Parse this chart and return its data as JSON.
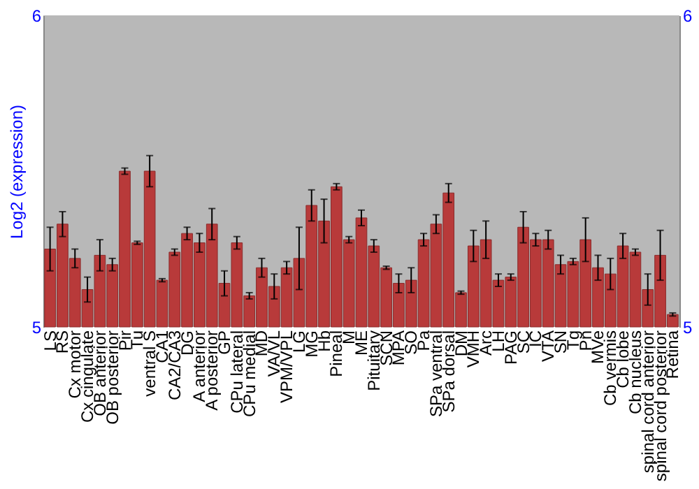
{
  "chart_data": {
    "type": "bar",
    "ylabel": "Log2 (expression)",
    "categories": [
      "LS",
      "RS",
      "Cx motor",
      "Cx cingulate",
      "OB anterior",
      "OB posterior",
      "Pir",
      "Tu",
      "ventral S",
      "CA1",
      "CA2/CA3",
      "DG",
      "A anterior",
      "A posterior",
      "GP",
      "CPu lateral",
      "CPu medial",
      "MD",
      "VA/VL",
      "VPM/VPL",
      "LG",
      "MG",
      "Hb",
      "Pineal",
      "M",
      "ME",
      "Pituitary",
      "SCN",
      "MPA",
      "SO",
      "Pa",
      "SPa ventral",
      "SPa dorsal",
      "DM",
      "VMH",
      "Arc",
      "LH",
      "PAG",
      "SC",
      "IC",
      "VTA",
      "SN",
      "Tg",
      "Pn",
      "MVe",
      "Cb vermis",
      "Cb lobe",
      "Cb nucleus",
      "spinal cord anterior",
      "spinal cord posterior",
      "Retina"
    ],
    "values": [
      5.25,
      5.33,
      5.22,
      5.12,
      5.23,
      5.2,
      5.5,
      5.27,
      5.5,
      5.15,
      5.24,
      5.3,
      5.27,
      5.33,
      5.14,
      5.27,
      5.1,
      5.19,
      5.13,
      5.19,
      5.22,
      5.39,
      5.34,
      5.45,
      5.28,
      5.35,
      5.26,
      5.19,
      5.14,
      5.15,
      5.28,
      5.33,
      5.43,
      5.11,
      5.26,
      5.28,
      5.15,
      5.16,
      5.32,
      5.28,
      5.28,
      5.2,
      5.21,
      5.28,
      5.19,
      5.17,
      5.26,
      5.24,
      5.12,
      5.23,
      5.04
    ],
    "errors": [
      0.07,
      0.04,
      0.03,
      0.04,
      0.05,
      0.02,
      0.01,
      0.005,
      0.05,
      0.005,
      0.01,
      0.02,
      0.03,
      0.05,
      0.04,
      0.02,
      0.01,
      0.03,
      0.04,
      0.02,
      0.1,
      0.05,
      0.07,
      0.01,
      0.01,
      0.025,
      0.02,
      0.005,
      0.03,
      0.04,
      0.02,
      0.03,
      0.03,
      0.005,
      0.05,
      0.06,
      0.02,
      0.01,
      0.05,
      0.02,
      0.03,
      0.03,
      0.01,
      0.07,
      0.04,
      0.05,
      0.04,
      0.01,
      0.05,
      0.08,
      0.005
    ],
    "color": "#b83a3a",
    "ylim": [
      5,
      6
    ],
    "yticks": [
      5,
      6
    ],
    "y2lim": [
      5,
      6
    ],
    "y2ticks": [
      5,
      6
    ],
    "grid": false
  }
}
